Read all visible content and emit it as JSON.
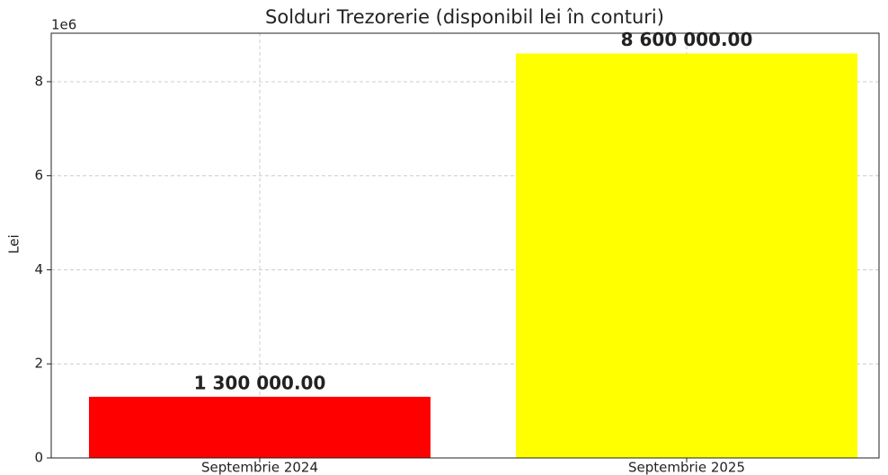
{
  "chart_data": {
    "type": "bar",
    "title": "Solduri Trezorerie (disponibil lei în conturi)",
    "ylabel": "Lei",
    "y_offset_label": "1e6",
    "categories": [
      "Septembrie 2024",
      "Septembrie 2025"
    ],
    "values": [
      1300000,
      8600000
    ],
    "value_labels": [
      "1 300 000.00",
      "8 600 000.00"
    ],
    "colors": [
      "#ff0000",
      "#ffff00"
    ],
    "ylim": [
      0,
      9030000
    ],
    "yticks": [
      {
        "value": 0,
        "label": "0"
      },
      {
        "value": 2000000,
        "label": "2"
      },
      {
        "value": 4000000,
        "label": "4"
      },
      {
        "value": 6000000,
        "label": "6"
      },
      {
        "value": 8000000,
        "label": "8"
      }
    ],
    "grid": true
  }
}
